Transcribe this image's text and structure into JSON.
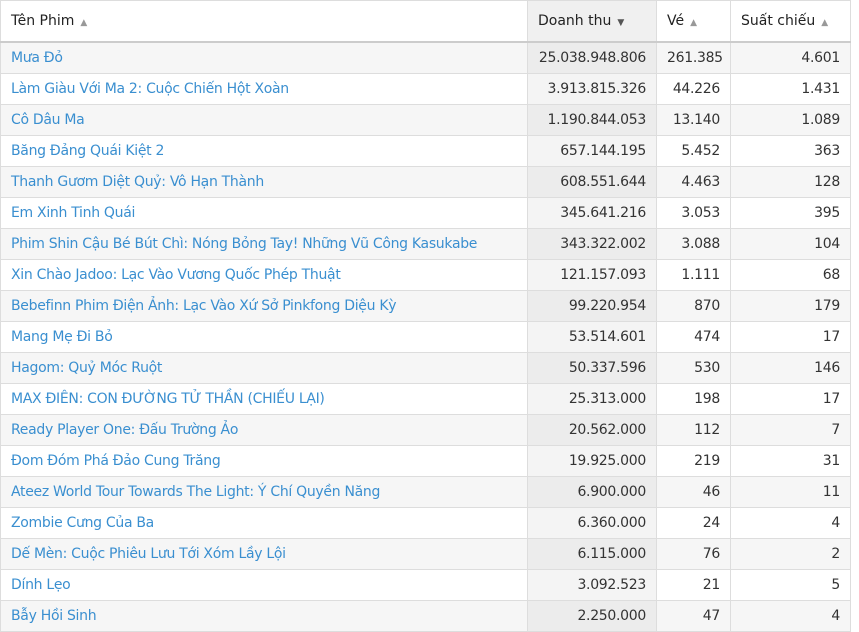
{
  "table": {
    "columns": [
      {
        "label": "Tên Phim",
        "sort": "asc-inactive"
      },
      {
        "label": "Doanh thu",
        "sort": "desc-active"
      },
      {
        "label": "Vé",
        "sort": "asc-inactive"
      },
      {
        "label": "Suất chiếu",
        "sort": "asc-inactive"
      }
    ],
    "link_color": "#3a8fd0",
    "rows": [
      [
        "Mưa Đỏ",
        "25.038.948.806",
        "261.385",
        "4.601"
      ],
      [
        "Làm Giàu Với Ma 2: Cuộc Chiến Hột Xoàn",
        "3.913.815.326",
        "44.226",
        "1.431"
      ],
      [
        "Cô Dâu Ma",
        "1.190.844.053",
        "13.140",
        "1.089"
      ],
      [
        "Băng Đảng Quái Kiệt 2",
        "657.144.195",
        "5.452",
        "363"
      ],
      [
        "Thanh Gươm Diệt Quỷ: Vô Hạn Thành",
        "608.551.644",
        "4.463",
        "128"
      ],
      [
        "Em Xinh Tinh Quái",
        "345.641.216",
        "3.053",
        "395"
      ],
      [
        "Phim Shin Cậu Bé Bút Chì: Nóng Bỏng Tay! Những Vũ Công Kasukabe",
        "343.322.002",
        "3.088",
        "104"
      ],
      [
        "Xin Chào Jadoo: Lạc Vào Vương Quốc Phép Thuật",
        "121.157.093",
        "1.111",
        "68"
      ],
      [
        "Bebefinn Phim Điện Ảnh: Lạc Vào Xứ Sở Pinkfong Diệu Kỳ",
        "99.220.954",
        "870",
        "179"
      ],
      [
        "Mang Mẹ Đi Bỏ",
        "53.514.601",
        "474",
        "17"
      ],
      [
        "Hagom: Quỷ Móc Ruột",
        "50.337.596",
        "530",
        "146"
      ],
      [
        "MAX ĐIÊN: CON ĐƯỜNG TỬ THẦN (CHIẾU LẠI)",
        "25.313.000",
        "198",
        "17"
      ],
      [
        "Ready Player One: Đấu Trường Ảo",
        "20.562.000",
        "112",
        "7"
      ],
      [
        "Đom Đóm Phá Đảo Cung Trăng",
        "19.925.000",
        "219",
        "31"
      ],
      [
        "Ateez World Tour Towards The Light: Ý Chí Quyền Năng",
        "6.900.000",
        "46",
        "11"
      ],
      [
        "Zombie Cưng Của Ba",
        "6.360.000",
        "24",
        "4"
      ],
      [
        "Dế Mèn: Cuộc Phiêu Lưu Tới Xóm Lầy Lội",
        "6.115.000",
        "76",
        "2"
      ],
      [
        "Dính Lẹo",
        "3.092.523",
        "21",
        "5"
      ],
      [
        "Bẫy Hồi Sinh",
        "2.250.000",
        "47",
        "4"
      ]
    ]
  }
}
